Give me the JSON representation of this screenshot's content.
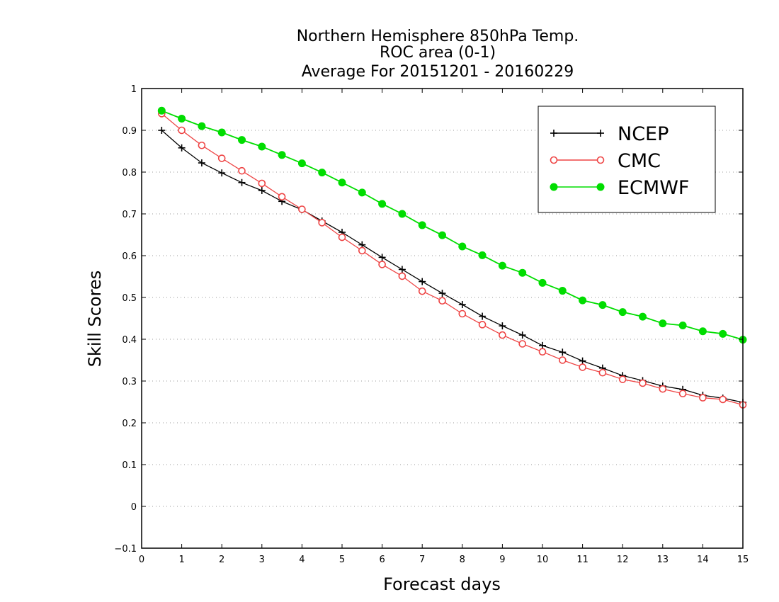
{
  "chart_data": {
    "type": "line",
    "title_lines": [
      "Northern Hemisphere 850hPa Temp.",
      "ROC area (0-1)",
      "Average For 20151201 - 20160229"
    ],
    "xlabel": "Forecast days",
    "ylabel": "Skill Scores",
    "xlim": [
      0,
      15
    ],
    "ylim": [
      -0.1,
      1
    ],
    "x_ticks": [
      "0",
      "1",
      "2",
      "3",
      "4",
      "5",
      "6",
      "7",
      "8",
      "9",
      "10",
      "11",
      "12",
      "13",
      "14",
      "15"
    ],
    "y_ticks": [
      "−0.1",
      "0",
      "0.1",
      "0.2",
      "0.3",
      "0.4",
      "0.5",
      "0.6",
      "0.7",
      "0.8",
      "0.9",
      "1"
    ],
    "grid": "horizontal dotted",
    "legend_position": "top-right",
    "x": [
      0.5,
      1,
      1.5,
      2,
      2.5,
      3,
      3.5,
      4,
      4.5,
      5,
      5.5,
      6,
      6.5,
      7,
      7.5,
      8,
      8.5,
      9,
      9.5,
      10,
      10.5,
      11,
      11.5,
      12,
      12.5,
      13,
      13.5,
      14,
      14.5,
      15
    ],
    "series": [
      {
        "name": "NCEP",
        "color": "#000000",
        "marker": "plus",
        "values": [
          0.9,
          0.858,
          0.822,
          0.798,
          0.775,
          0.756,
          0.73,
          0.71,
          0.683,
          0.656,
          0.626,
          0.596,
          0.567,
          0.538,
          0.51,
          0.483,
          0.455,
          0.432,
          0.41,
          0.385,
          0.369,
          0.348,
          0.331,
          0.313,
          0.301,
          0.288,
          0.28,
          0.266,
          0.259,
          0.249
        ]
      },
      {
        "name": "CMC",
        "color": "#ee4444",
        "marker": "open-circle",
        "values": [
          0.94,
          0.9,
          0.864,
          0.833,
          0.803,
          0.773,
          0.741,
          0.711,
          0.679,
          0.644,
          0.612,
          0.579,
          0.551,
          0.515,
          0.492,
          0.461,
          0.435,
          0.41,
          0.389,
          0.37,
          0.35,
          0.333,
          0.32,
          0.304,
          0.295,
          0.281,
          0.27,
          0.26,
          0.256,
          0.243
        ]
      },
      {
        "name": "ECMWF",
        "color": "#00dd00",
        "marker": "filled-circle",
        "values": [
          0.947,
          0.928,
          0.91,
          0.895,
          0.877,
          0.861,
          0.841,
          0.821,
          0.799,
          0.775,
          0.751,
          0.724,
          0.7,
          0.673,
          0.649,
          0.622,
          0.601,
          0.576,
          0.559,
          0.535,
          0.516,
          0.493,
          0.482,
          0.465,
          0.454,
          0.438,
          0.433,
          0.419,
          0.413,
          0.399
        ]
      }
    ]
  }
}
